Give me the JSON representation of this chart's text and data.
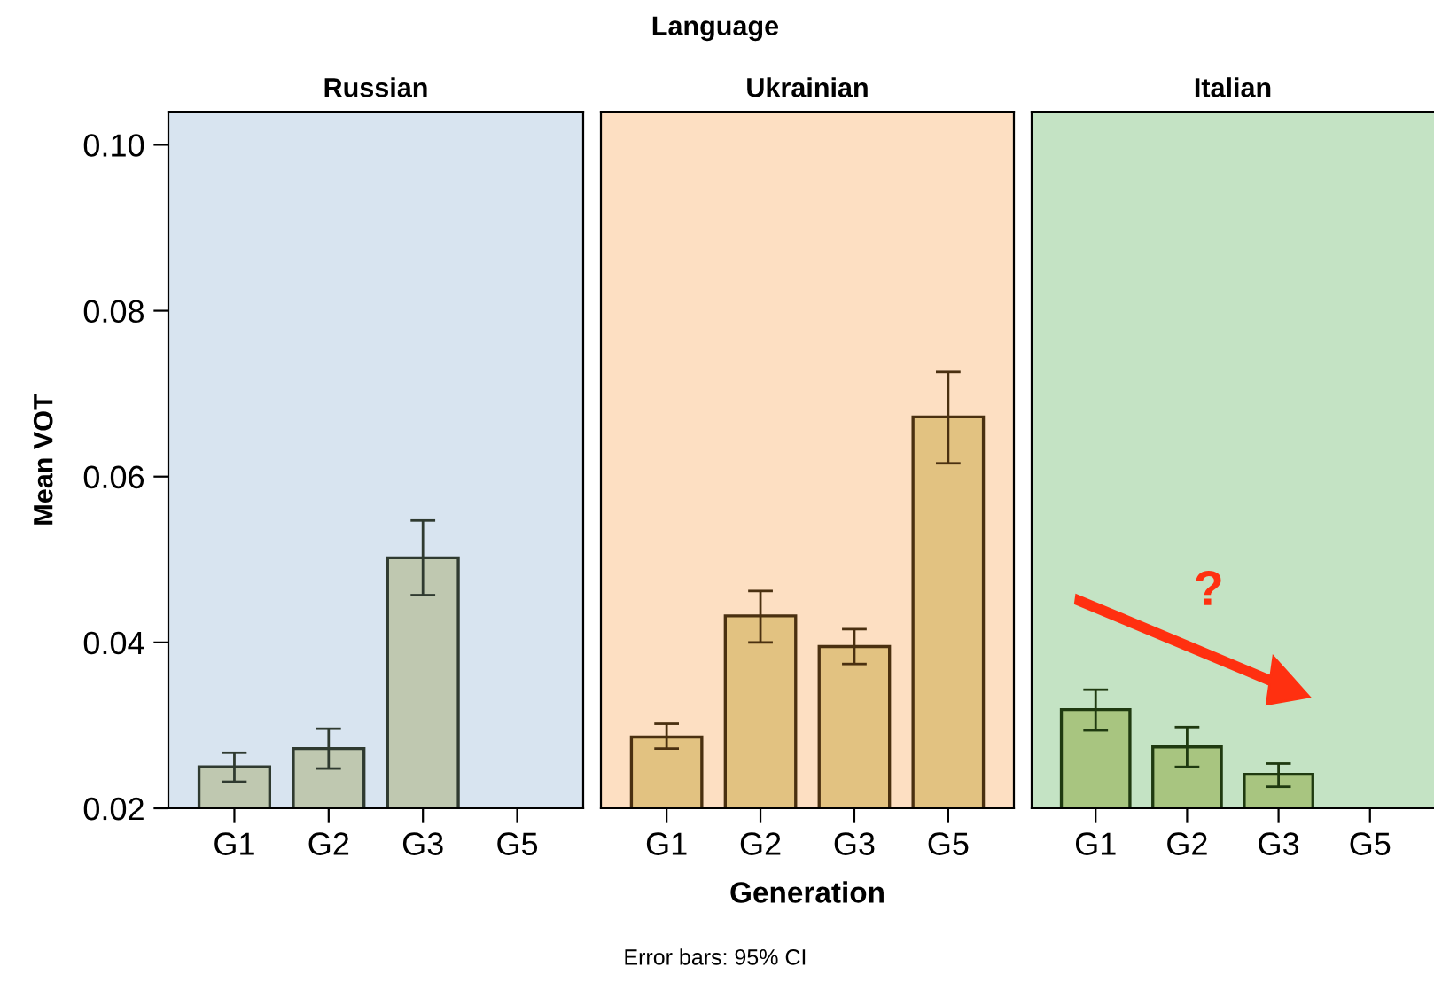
{
  "chart_data": [
    {
      "type": "bar",
      "title": "Russian",
      "ylabel": "Mean VOT",
      "categories": [
        "G1",
        "G2",
        "G3",
        "G5"
      ],
      "values": [
        0.025,
        0.0272,
        0.0502,
        null
      ],
      "errors": [
        [
          0.0232,
          0.0267
        ],
        [
          0.0248,
          0.0296
        ],
        [
          0.0457,
          0.0547
        ],
        null
      ],
      "color": "#bfc8b0",
      "ylim": [
        0.02,
        0.104
      ],
      "yticks": [
        0.02,
        0.04,
        0.06,
        0.08,
        {
          "value": 0.1,
          "label": "0.10"
        }
      ],
      "grid": false
    },
    {
      "type": "bar",
      "title": "Ukrainian",
      "xlabel": "Generation",
      "categories": [
        "G1",
        "G2",
        "G3",
        "G5"
      ],
      "values": [
        0.0286,
        0.0432,
        0.0395,
        0.0672
      ],
      "errors": [
        [
          0.0272,
          0.0302
        ],
        [
          0.04,
          0.0462
        ],
        [
          0.0374,
          0.0416
        ],
        [
          0.0616,
          0.0726
        ]
      ],
      "color": "#e2c281",
      "ylim": [
        0.02,
        0.104
      ],
      "tick_labels": "x",
      "annotations": [
        "Language",
        "Error bars: 95% CI"
      ],
      "grid": false
    },
    {
      "type": "bar",
      "title": "Italian",
      "categories": [
        "G1",
        "G2",
        "G3",
        "G5"
      ],
      "values": [
        0.0319,
        0.0274,
        0.0241,
        null
      ],
      "errors": [
        [
          0.0294,
          0.0343
        ],
        [
          0.025,
          0.0298
        ],
        [
          0.0226,
          0.0254
        ],
        null
      ],
      "color": "#a8c580",
      "ylim": [
        0.02,
        0.104
      ],
      "tick_labels": "x",
      "annotations": [
        "?"
      ],
      "grid": false
    }
  ]
}
